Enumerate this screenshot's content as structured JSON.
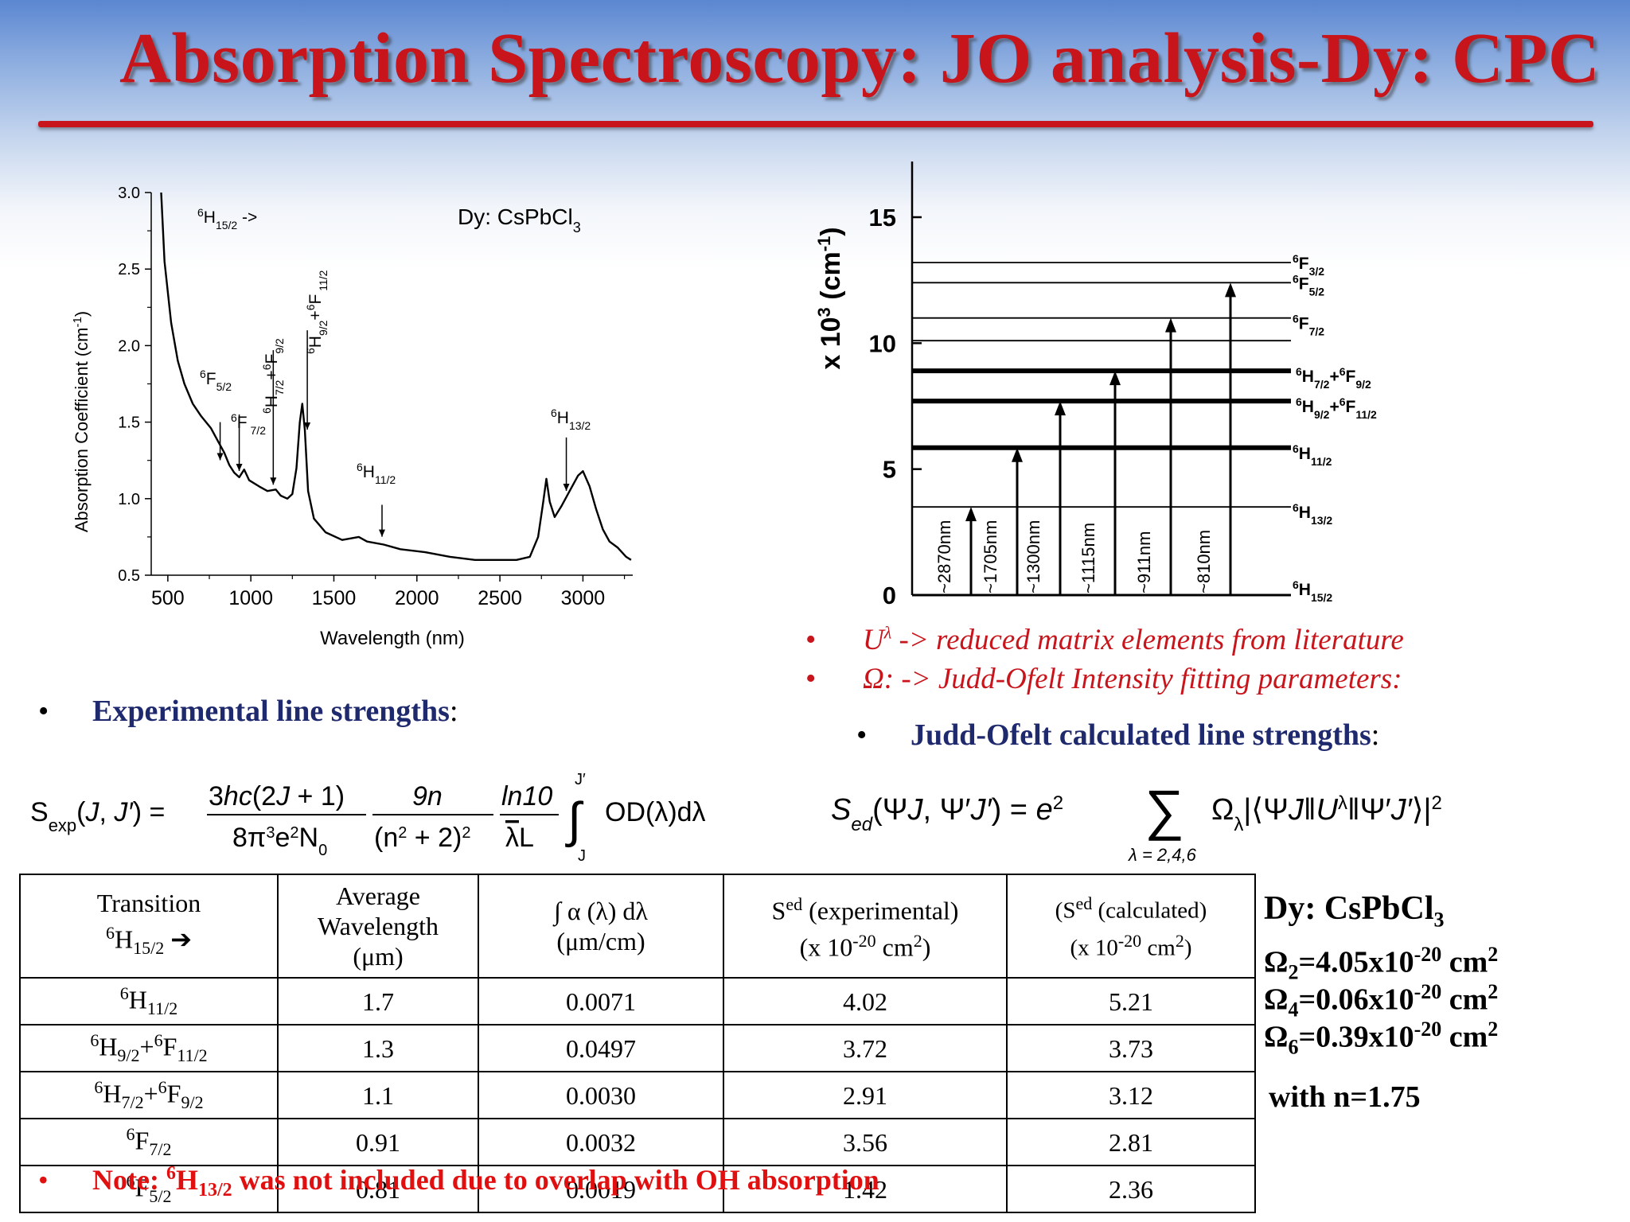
{
  "title": "Absorption Spectroscopy: JO analysis-Dy: CPC",
  "spectrum_chart": {
    "type": "line",
    "title": "Dy: CsPbCl",
    "title_sub": "3",
    "xlabel": "Wavelength (nm)",
    "ylabel": "Absorption Coefficient (cm",
    "ylabel_sup": "-1",
    "ylabel_end": ")",
    "xlim": [
      400,
      3300
    ],
    "ylim": [
      0.5,
      3.0
    ],
    "x_ticks": [
      "500",
      "1000",
      "1500",
      "2000",
      "2500",
      "3000"
    ],
    "y_ticks": [
      "0.5",
      "1.0",
      "1.5",
      "2.0",
      "2.5",
      "3.0"
    ],
    "series": [
      {
        "points": [
          [
            460,
            3.0
          ],
          [
            480,
            2.55
          ],
          [
            520,
            2.15
          ],
          [
            560,
            1.9
          ],
          [
            600,
            1.75
          ],
          [
            650,
            1.62
          ],
          [
            700,
            1.54
          ],
          [
            760,
            1.46
          ],
          [
            800,
            1.38
          ],
          [
            840,
            1.3
          ],
          [
            870,
            1.22
          ],
          [
            900,
            1.17
          ],
          [
            930,
            1.14
          ],
          [
            960,
            1.19
          ],
          [
            990,
            1.12
          ],
          [
            1050,
            1.08
          ],
          [
            1100,
            1.05
          ],
          [
            1150,
            1.06
          ],
          [
            1180,
            1.02
          ],
          [
            1220,
            1.0
          ],
          [
            1250,
            1.03
          ],
          [
            1275,
            1.2
          ],
          [
            1295,
            1.5
          ],
          [
            1310,
            1.62
          ],
          [
            1325,
            1.45
          ],
          [
            1345,
            1.05
          ],
          [
            1380,
            0.87
          ],
          [
            1450,
            0.78
          ],
          [
            1550,
            0.73
          ],
          [
            1650,
            0.75
          ],
          [
            1700,
            0.72
          ],
          [
            1800,
            0.7
          ],
          [
            1900,
            0.67
          ],
          [
            2050,
            0.65
          ],
          [
            2200,
            0.62
          ],
          [
            2350,
            0.6
          ],
          [
            2500,
            0.6
          ],
          [
            2600,
            0.6
          ],
          [
            2680,
            0.62
          ],
          [
            2730,
            0.75
          ],
          [
            2760,
            0.97
          ],
          [
            2780,
            1.13
          ],
          [
            2800,
            0.98
          ],
          [
            2830,
            0.88
          ],
          [
            2870,
            0.95
          ],
          [
            2920,
            1.05
          ],
          [
            2970,
            1.15
          ],
          [
            3000,
            1.18
          ],
          [
            3040,
            1.08
          ],
          [
            3080,
            0.93
          ],
          [
            3120,
            0.8
          ],
          [
            3160,
            0.72
          ],
          [
            3210,
            0.68
          ],
          [
            3260,
            0.62
          ],
          [
            3290,
            0.6
          ]
        ]
      }
    ],
    "annotations": [
      {
        "label": "6H15/2 ->",
        "x": null
      },
      {
        "label": "6F5/2",
        "x": 815
      },
      {
        "label": "6F7/2",
        "x": 930
      },
      {
        "label": "6H7/2+6F9/2",
        "x": 1135
      },
      {
        "label": "6H9/2+6F11/2",
        "x": 1340
      },
      {
        "label": "6H11/2",
        "x": 1790
      },
      {
        "label": "6H13/2",
        "x": 2900
      }
    ]
  },
  "energy_chart": {
    "type": "diagram",
    "ylabel": "x 10",
    "ylabel_sup": "3",
    "ylabel_unit": " (cm",
    "ylabel_unit_sup": "-1",
    "ylabel_end": ")",
    "y_ticks": [
      "0",
      "5",
      "10",
      "15"
    ],
    "ylim": [
      0,
      17
    ],
    "levels": [
      {
        "name": "6F3/2",
        "energy": 13.2,
        "bold": false
      },
      {
        "name": "6F5/2",
        "energy": 12.4,
        "bold": false
      },
      {
        "name": "6F7/2",
        "energy": 11.0,
        "bold": false
      },
      {
        "name": "",
        "energy": 10.1,
        "bold": false
      },
      {
        "name": "6H7/2+6F9/2",
        "energy": 8.9,
        "bold": true
      },
      {
        "name": "6H9/2+6F11/2",
        "energy": 7.7,
        "bold": true
      },
      {
        "name": "6H11/2",
        "energy": 5.85,
        "bold": true
      },
      {
        "name": "6H13/2",
        "energy": 3.5,
        "bold": false
      },
      {
        "name": "6H15/2",
        "energy": 0,
        "bold": true
      }
    ],
    "transitions": [
      {
        "label": "~2870nm",
        "energy": 3.5
      },
      {
        "label": "~1705nm",
        "energy": 5.85
      },
      {
        "label": "~1300nm",
        "energy": 7.7
      },
      {
        "label": "~1115nm",
        "energy": 8.9
      },
      {
        "label": "~911nm",
        "energy": 11.0
      },
      {
        "label": "~810nm",
        "energy": 12.4
      }
    ]
  },
  "right_bullets": {
    "b1_sym": "U",
    "b1_sup": "λ",
    "b1_text": " -> reduced matrix elements from literature",
    "b2_sym": "Ω:",
    "b2_text": " ->  Judd-Ofelt Intensity fitting parameters:"
  },
  "left_heading": {
    "bold": "Experimental line strengths",
    "colon": ":"
  },
  "right_heading": {
    "bold": "Judd-Ofelt calculated line strengths",
    "colon": ":"
  },
  "table": {
    "headers": {
      "transition": "Transition",
      "avg_wavelength": [
        "Average",
        "Wavelength",
        "(μm)"
      ],
      "integral": [
        "∫ α (λ) dλ",
        "(μm/cm)"
      ],
      "s_exp": [
        "S",
        "ed",
        " (experimental)",
        "(x 10",
        "-20",
        " cm",
        "2",
        ")"
      ],
      "s_calc": [
        "(S",
        "ed",
        " (calculated)",
        "(x 10",
        "-20",
        " cm",
        "2",
        ")"
      ]
    },
    "rows": [
      {
        "transition": "6H11/2",
        "wavelength": "1.7",
        "integral": "0.0071",
        "s_exp": "4.02",
        "s_calc": "5.21"
      },
      {
        "transition": "6H9/2+6F11/2",
        "wavelength": "1.3",
        "integral": "0.0497",
        "s_exp": "3.72",
        "s_calc": "3.73"
      },
      {
        "transition": "6H7/2+6F9/2",
        "wavelength": "1.1",
        "integral": "0.0030",
        "s_exp": "2.91",
        "s_calc": "3.12"
      },
      {
        "transition": "6F7/2",
        "wavelength": "0.91",
        "integral": "0.0032",
        "s_exp": "3.56",
        "s_calc": "2.81"
      },
      {
        "transition": "6F5/2",
        "wavelength": "0.81",
        "integral": "0.0019",
        "s_exp": "1.42",
        "s_calc": "2.36"
      }
    ]
  },
  "params": {
    "heading": "Dy: CsPbCl",
    "heading_sub": "3",
    "omega2": "=4.05x10",
    "omega4": "=0.06x10",
    "omega6": "=0.39x10",
    "exp": "-20",
    "unit": " cm",
    "unit_sup": "2",
    "n_text": "with n=1.75"
  },
  "note": {
    "prefix": "Note: ",
    "sup": "6",
    "symbol": "H",
    "sub": "13/2",
    "text": " was not included due to overlap with OH absorption"
  },
  "colors": {
    "title_red": "#c8141b",
    "navy": "#1f2a6e"
  }
}
